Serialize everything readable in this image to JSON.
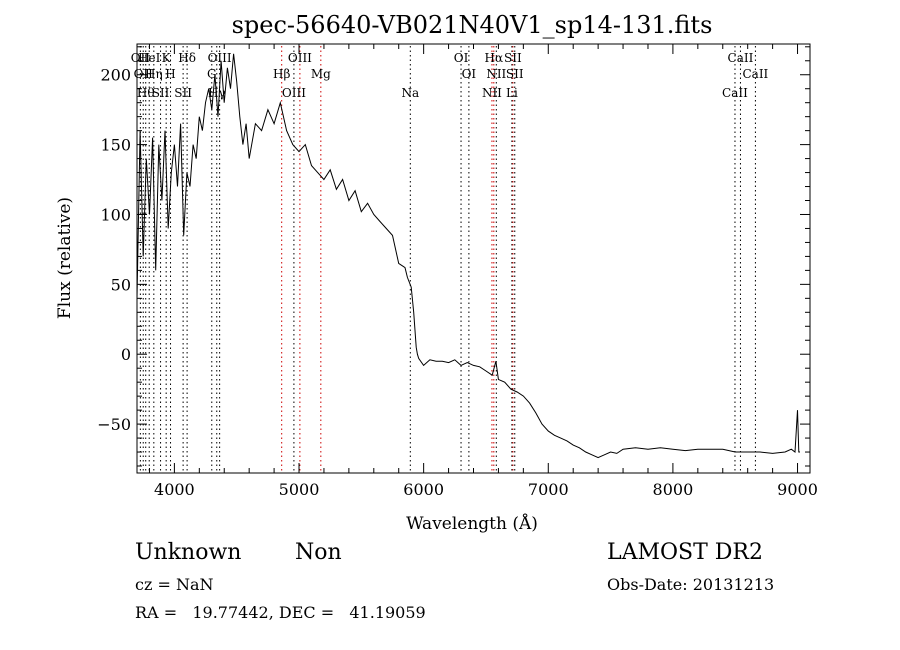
{
  "chart_data": {
    "type": "line",
    "title": "spec-56640-VB021N40V1_sp14-131.fits",
    "xlabel": "Wavelength (Å)",
    "ylabel": "Flux (relative)",
    "xlim": [
      3700,
      9100
    ],
    "ylim": [
      -85,
      222
    ],
    "x_ticks": [
      4000,
      5000,
      6000,
      7000,
      8000,
      9000
    ],
    "y_ticks": [
      -50,
      0,
      50,
      100,
      150,
      200
    ],
    "grid": false,
    "series": [
      {
        "name": "",
        "color": "#000000",
        "x": [
          3700,
          3725,
          3750,
          3775,
          3800,
          3825,
          3850,
          3875,
          3900,
          3925,
          3950,
          3975,
          4000,
          4025,
          4050,
          4075,
          4100,
          4125,
          4150,
          4175,
          4200,
          4225,
          4250,
          4275,
          4300,
          4325,
          4350,
          4375,
          4400,
          4425,
          4450,
          4475,
          4500,
          4525,
          4550,
          4575,
          4600,
          4650,
          4700,
          4750,
          4800,
          4850,
          4900,
          4950,
          5000,
          5050,
          5100,
          5150,
          5200,
          5250,
          5300,
          5350,
          5400,
          5450,
          5500,
          5550,
          5600,
          5650,
          5700,
          5750,
          5800,
          5850,
          5870,
          5900,
          5920,
          5940,
          5950,
          5960,
          6000,
          6050,
          6100,
          6150,
          6200,
          6250,
          6300,
          6350,
          6400,
          6450,
          6500,
          6550,
          6580,
          6600,
          6650,
          6700,
          6750,
          6800,
          6850,
          6900,
          6950,
          7000,
          7050,
          7100,
          7150,
          7200,
          7250,
          7300,
          7350,
          7400,
          7450,
          7500,
          7550,
          7600,
          7700,
          7800,
          7900,
          8000,
          8100,
          8200,
          8300,
          8400,
          8500,
          8600,
          8700,
          8800,
          8900,
          8950,
          8980,
          9000,
          9010,
          9020
        ],
        "y": [
          40,
          160,
          70,
          140,
          100,
          155,
          60,
          150,
          110,
          160,
          90,
          130,
          150,
          120,
          165,
          85,
          130,
          120,
          150,
          140,
          170,
          160,
          180,
          190,
          175,
          200,
          170,
          210,
          180,
          205,
          190,
          215,
          195,
          170,
          150,
          165,
          140,
          165,
          160,
          175,
          165,
          180,
          160,
          150,
          145,
          150,
          135,
          130,
          125,
          132,
          118,
          125,
          110,
          117,
          102,
          108,
          100,
          95,
          90,
          85,
          65,
          62,
          55,
          48,
          30,
          5,
          0,
          -3,
          -8,
          -4,
          -5,
          -5,
          -6,
          -4,
          -8,
          -6,
          -8,
          -9,
          -12,
          -15,
          -5,
          -18,
          -20,
          -25,
          -27,
          -30,
          -35,
          -42,
          -50,
          -55,
          -58,
          -60,
          -62,
          -65,
          -67,
          -70,
          -72,
          -74,
          -72,
          -70,
          -71,
          -68,
          -67,
          -68,
          -67,
          -68,
          -69,
          -68,
          -68,
          -68,
          -70,
          -70,
          -70,
          -71,
          -70,
          -68,
          -70,
          -40,
          -70,
          -70
        ]
      }
    ],
    "lines": [
      {
        "x": 3727,
        "label": "OII",
        "color": "#000000"
      },
      {
        "x": 3750,
        "label": "OII",
        "color": "#000000"
      },
      {
        "x": 3770,
        "label": "Hθ",
        "color": "#000000"
      },
      {
        "x": 3798,
        "label": "HeI",
        "color": "#000000"
      },
      {
        "x": 3835,
        "label": "Hη",
        "color": "#000000"
      },
      {
        "x": 3889,
        "label": "SII",
        "color": "#000000"
      },
      {
        "x": 3934,
        "label": "K",
        "color": "#000000"
      },
      {
        "x": 3969,
        "label": "H",
        "color": "#000000"
      },
      {
        "x": 4070,
        "label": "SII",
        "color": "#000000"
      },
      {
        "x": 4102,
        "label": "Hδ",
        "color": "#000000"
      },
      {
        "x": 4300,
        "label": "G",
        "color": "#000000"
      },
      {
        "x": 4340,
        "label": "Hγ",
        "color": "#000000"
      },
      {
        "x": 4363,
        "label": "OIII",
        "color": "#000000"
      },
      {
        "x": 4861,
        "label": "Hβ",
        "color": "#cc0000"
      },
      {
        "x": 4959,
        "label": "OIII",
        "color": "#000000"
      },
      {
        "x": 5007,
        "label": "OIII",
        "color": "#cc0000"
      },
      {
        "x": 5175,
        "label": "Mg",
        "color": "#cc0000"
      },
      {
        "x": 5893,
        "label": "Na",
        "color": "#000000"
      },
      {
        "x": 6300,
        "label": "OI",
        "color": "#000000"
      },
      {
        "x": 6363,
        "label": "OI",
        "color": "#000000"
      },
      {
        "x": 6548,
        "label": "NII",
        "color": "#cc0000"
      },
      {
        "x": 6563,
        "label": "Hα",
        "color": "#cc0000"
      },
      {
        "x": 6583,
        "label": "NII",
        "color": "#000000"
      },
      {
        "x": 6708,
        "label": "Li",
        "color": "#000000"
      },
      {
        "x": 6716,
        "label": "SII",
        "color": "#cc0000"
      },
      {
        "x": 6731,
        "label": "SII",
        "color": "#000000"
      },
      {
        "x": 8498,
        "label": "CaII",
        "color": "#000000"
      },
      {
        "x": 8542,
        "label": "CaII",
        "color": "#000000"
      },
      {
        "x": 8662,
        "label": "CaII",
        "color": "#000000"
      }
    ]
  },
  "info": {
    "class": "Unknown",
    "subclass": "Non",
    "survey": "LAMOST DR2",
    "cz": "cz = NaN",
    "obs_date": "Obs-Date: 20131213",
    "coords": "RA =   19.77442, DEC =   41.19059"
  }
}
